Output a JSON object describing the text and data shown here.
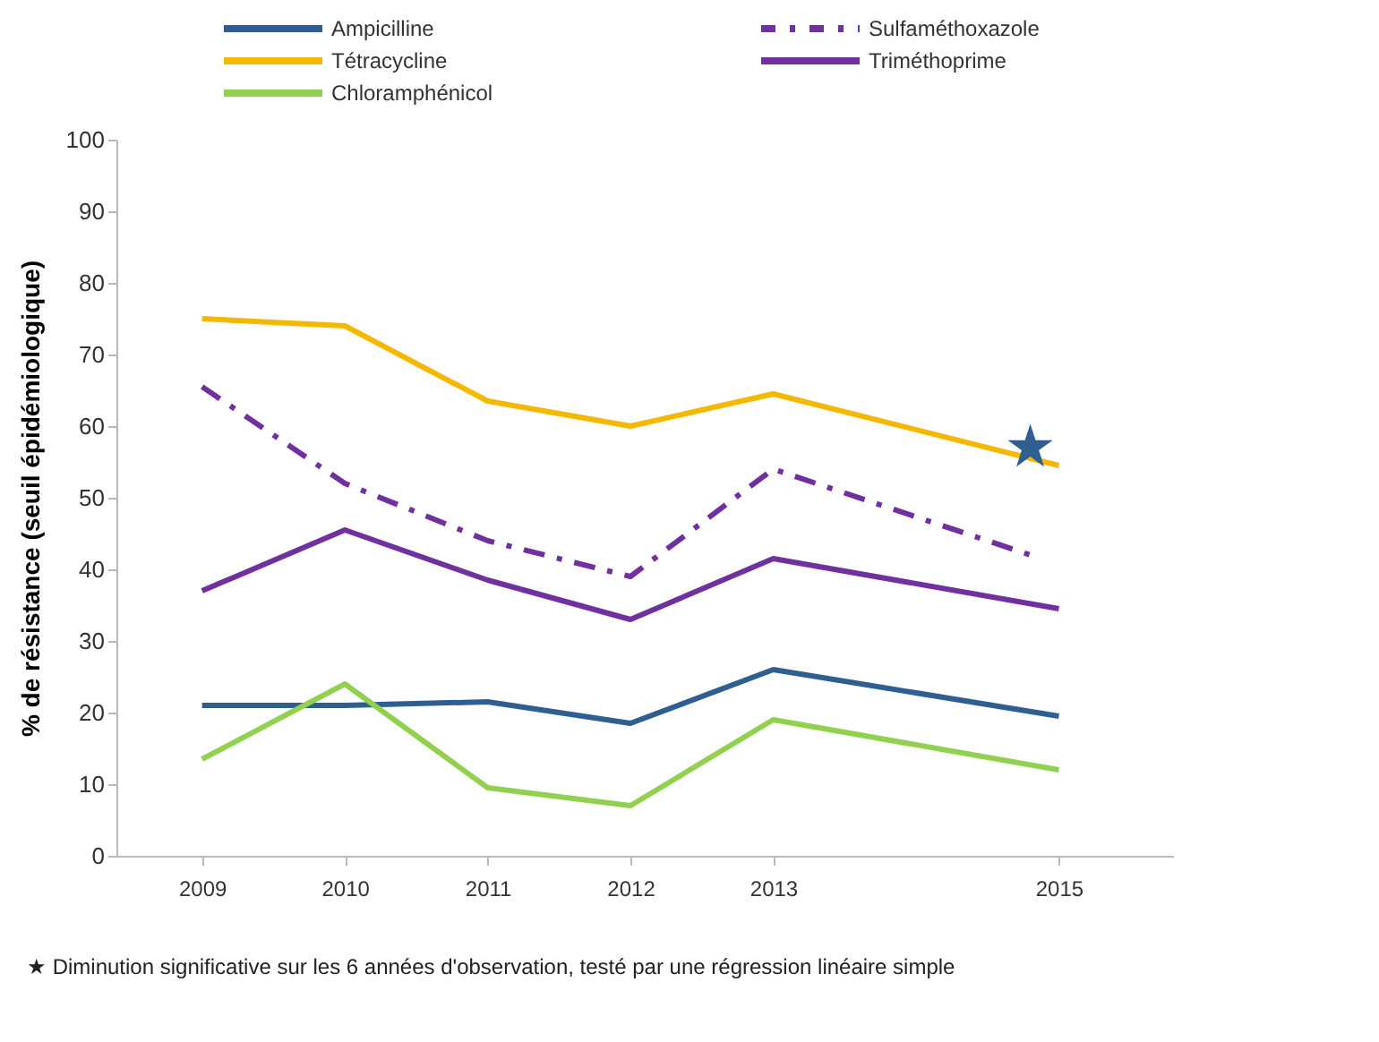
{
  "chart_data": {
    "type": "line",
    "ylabel": "% de résistance (seuil épidémiologique)",
    "x": [
      2009,
      2010,
      2011,
      2012,
      2013,
      2015
    ],
    "xlim": [
      2008.4,
      2015.8
    ],
    "xticks": [
      2009,
      2010,
      2011,
      2012,
      2013,
      2015
    ],
    "ylim": [
      0,
      100
    ],
    "yticks": [
      0,
      10,
      20,
      30,
      40,
      50,
      60,
      70,
      80,
      90,
      100
    ],
    "grid": false,
    "legend": "top",
    "marker": "none",
    "series": [
      {
        "name": "Ampicilline",
        "color": "#2f5f91",
        "values": [
          21,
          21,
          21.5,
          18.5,
          26,
          19.5
        ]
      },
      {
        "name": "Sulfaméthoxazole",
        "color": "#7030a0",
        "line_style": "dashed",
        "x": [
          2009,
          2010,
          2011,
          2012,
          2013,
          2014.8
        ],
        "values": [
          65.5,
          52,
          44,
          39,
          54,
          42
        ]
      },
      {
        "name": "Tétracycline",
        "color": "#f5b800",
        "values": [
          75,
          74,
          63.5,
          60,
          64.5,
          54.5
        ]
      },
      {
        "name": "Triméthoprime",
        "color": "#7030a0",
        "values": [
          37,
          45.5,
          38.5,
          33,
          41.5,
          34.5
        ]
      },
      {
        "name": "Chloramphénicol",
        "color": "#92d050",
        "values": [
          13.5,
          24,
          9.5,
          7,
          19,
          12
        ]
      },
      {
        "type": "scatter",
        "marker": "star",
        "color": "#2f5f91",
        "x": [
          2014.8
        ],
        "values": [
          57
        ]
      }
    ],
    "annotations": [
      "★ Diminution significative sur les 6 années d'observation, testé par une régression linéaire simple"
    ]
  }
}
